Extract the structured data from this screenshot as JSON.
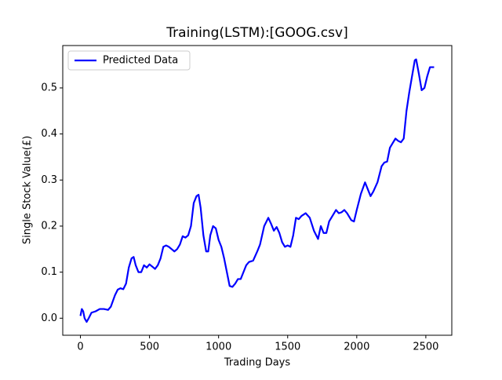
{
  "chart_data": {
    "type": "line",
    "title": "Training(LSTM):[GOOG.csv]",
    "title_color": "#0000ff",
    "xlabel": "Trading Days",
    "ylabel": "Single Stock Value(£)",
    "x": [
      0,
      10,
      20,
      30,
      45,
      60,
      80,
      110,
      140,
      170,
      200,
      220,
      250,
      270,
      290,
      310,
      330,
      350,
      370,
      385,
      400,
      420,
      440,
      460,
      480,
      500,
      520,
      540,
      560,
      580,
      600,
      620,
      640,
      660,
      680,
      700,
      720,
      740,
      760,
      780,
      800,
      820,
      840,
      855,
      870,
      890,
      910,
      925,
      940,
      960,
      980,
      1000,
      1020,
      1040,
      1060,
      1080,
      1100,
      1120,
      1140,
      1160,
      1180,
      1200,
      1220,
      1250,
      1280,
      1300,
      1330,
      1360,
      1380,
      1400,
      1420,
      1440,
      1460,
      1480,
      1500,
      1520,
      1540,
      1560,
      1580,
      1600,
      1630,
      1660,
      1690,
      1720,
      1740,
      1760,
      1780,
      1800,
      1830,
      1850,
      1870,
      1890,
      1910,
      1930,
      1960,
      1980,
      2000,
      2030,
      2060,
      2080,
      2100,
      2120,
      2150,
      2180,
      2200,
      2220,
      2240,
      2260,
      2280,
      2300,
      2320,
      2340,
      2360,
      2380,
      2400,
      2420,
      2430,
      2450,
      2470,
      2490,
      2510,
      2530,
      2560
    ],
    "series": [
      {
        "name": "Predicted Data",
        "color": "#0000ff",
        "values": [
          0.005,
          0.02,
          0.015,
          0.0,
          -0.008,
          0.0,
          0.012,
          0.015,
          0.02,
          0.02,
          0.018,
          0.025,
          0.05,
          0.062,
          0.065,
          0.063,
          0.075,
          0.11,
          0.13,
          0.133,
          0.115,
          0.1,
          0.1,
          0.115,
          0.11,
          0.117,
          0.112,
          0.107,
          0.115,
          0.13,
          0.155,
          0.158,
          0.155,
          0.15,
          0.145,
          0.15,
          0.16,
          0.178,
          0.175,
          0.18,
          0.2,
          0.25,
          0.265,
          0.268,
          0.24,
          0.18,
          0.145,
          0.145,
          0.18,
          0.2,
          0.195,
          0.17,
          0.155,
          0.13,
          0.1,
          0.07,
          0.068,
          0.075,
          0.085,
          0.085,
          0.1,
          0.115,
          0.122,
          0.125,
          0.145,
          0.16,
          0.2,
          0.218,
          0.205,
          0.19,
          0.198,
          0.185,
          0.165,
          0.155,
          0.158,
          0.155,
          0.18,
          0.218,
          0.215,
          0.222,
          0.228,
          0.218,
          0.19,
          0.172,
          0.2,
          0.185,
          0.185,
          0.21,
          0.225,
          0.235,
          0.228,
          0.23,
          0.235,
          0.228,
          0.213,
          0.21,
          0.235,
          0.27,
          0.295,
          0.28,
          0.265,
          0.275,
          0.295,
          0.33,
          0.338,
          0.34,
          0.37,
          0.38,
          0.39,
          0.385,
          0.382,
          0.39,
          0.45,
          0.49,
          0.525,
          0.56,
          0.562,
          0.53,
          0.495,
          0.5,
          0.525,
          0.545,
          0.545
        ]
      }
    ],
    "xlim": [
      -128,
      2688
    ],
    "xticks": [
      0,
      500,
      1000,
      1500,
      2000,
      2500
    ],
    "ylim": [
      -0.037,
      0.592
    ],
    "yticks": [
      {
        "value": 0,
        "label": "0.0"
      },
      0.1,
      0.2,
      0.3,
      0.4,
      0.5
    ],
    "grid": false,
    "legend": "upper-left"
  }
}
